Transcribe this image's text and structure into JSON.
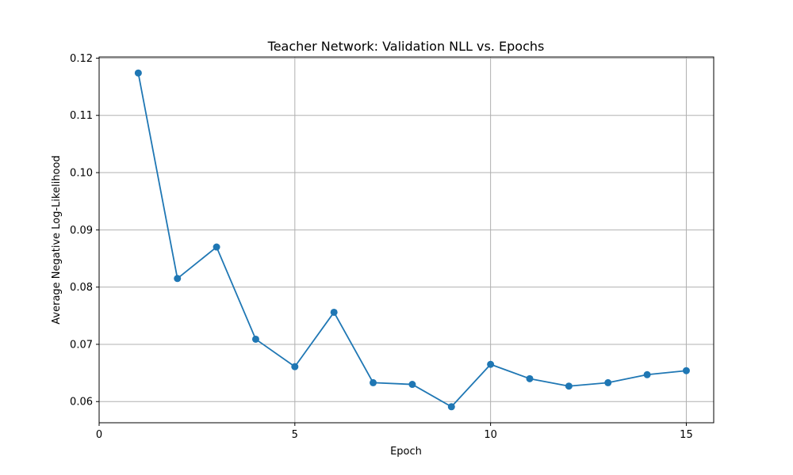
{
  "chart_data": {
    "type": "line",
    "title": "Teacher Network: Validation NLL vs. Epochs",
    "xlabel": "Epoch",
    "ylabel": "Average Negative Log-Likelihood",
    "xlim": [
      0,
      15.7
    ],
    "ylim": [
      0.0563,
      0.1202
    ],
    "xticks": [
      0,
      5,
      10,
      15
    ],
    "yticks": [
      0.06,
      0.07,
      0.08,
      0.09,
      0.1,
      0.11,
      0.12
    ],
    "xtick_labels": [
      "0",
      "5",
      "10",
      "15"
    ],
    "ytick_labels": [
      "0.06",
      "0.07",
      "0.08",
      "0.09",
      "0.10",
      "0.11",
      "0.12"
    ],
    "grid": true,
    "color": "#1f77b4",
    "marker": "circle",
    "series": [
      {
        "x": [
          1,
          2,
          3,
          4,
          5,
          6,
          7,
          8,
          9,
          10,
          11,
          12,
          13,
          14,
          15
        ],
        "values": [
          0.1174,
          0.0815,
          0.087,
          0.0709,
          0.0661,
          0.0756,
          0.0633,
          0.063,
          0.0591,
          0.0665,
          0.064,
          0.0627,
          0.0633,
          0.0647,
          0.0654
        ]
      }
    ]
  }
}
